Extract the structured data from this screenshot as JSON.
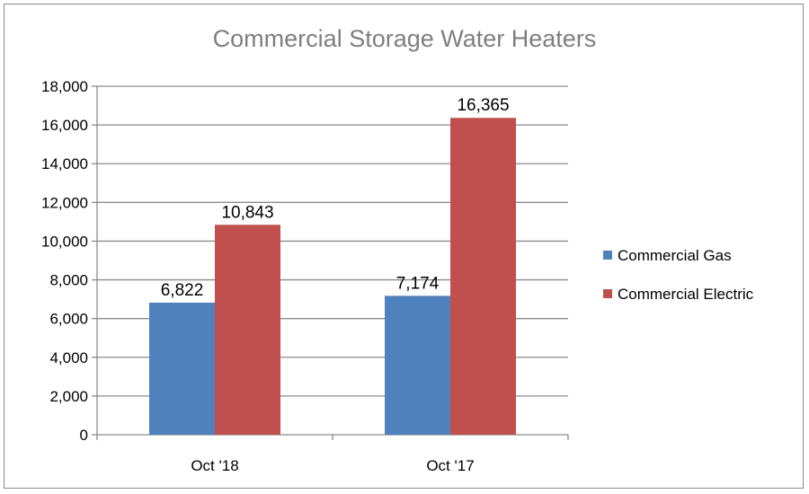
{
  "chart_data": {
    "type": "bar",
    "title": "Commercial Storage Water Heaters",
    "xlabel": "",
    "ylabel": "",
    "categories": [
      "Oct '18",
      "Oct '17"
    ],
    "series": [
      {
        "name": "Commercial Gas",
        "values": [
          6822,
          7174
        ],
        "color": "#4f81bd",
        "labels": [
          "6,822",
          "7,174"
        ]
      },
      {
        "name": "Commercial Electric",
        "values": [
          10843,
          16365
        ],
        "color": "#c0504d",
        "labels": [
          "10,843",
          "16,365"
        ]
      }
    ],
    "ylim": [
      0,
      18000
    ],
    "yticks": [
      0,
      2000,
      4000,
      6000,
      8000,
      10000,
      12000,
      14000,
      16000,
      18000
    ],
    "ytick_labels": [
      "0",
      "2,000",
      "4,000",
      "6,000",
      "8,000",
      "10,000",
      "12,000",
      "14,000",
      "16,000",
      "18,000"
    ],
    "grid": true,
    "legend_position": "right"
  }
}
